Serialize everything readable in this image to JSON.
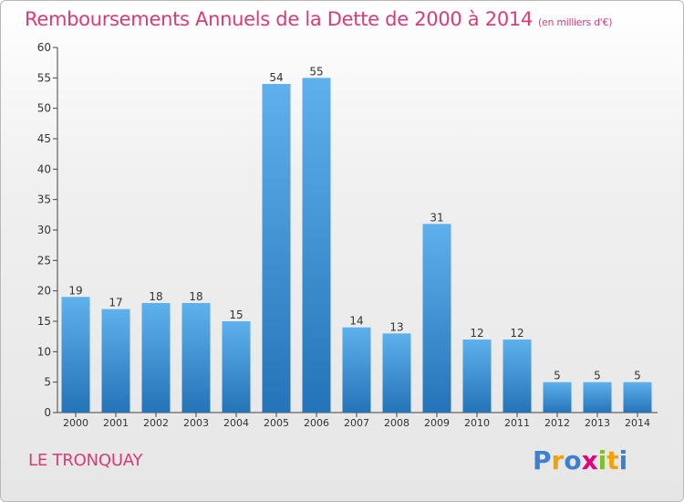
{
  "header": {
    "title": "Remboursements Annuels de la Dette de 2000 à 2014",
    "unit": "(en milliers d'€)"
  },
  "footer": {
    "commune": "LE TRONQUAY",
    "logo_text": "Proxiti"
  },
  "colors": {
    "title": "#d63c79",
    "bar_top": "#5eb1ec",
    "bar_bottom": "#2573b8",
    "logo_letters": [
      "#3d7fd0",
      "#f0a20a",
      "#3d7fd0",
      "#e4007c",
      "#7fbf2a",
      "#f0a20a",
      "#3d7fd0"
    ]
  },
  "chart_data": {
    "type": "bar",
    "title": "Remboursements Annuels de la Dette de 2000 à 2014",
    "subtitle": "(en milliers d'€)",
    "xlabel": "",
    "ylabel": "",
    "categories": [
      "2000",
      "2001",
      "2002",
      "2003",
      "2004",
      "2005",
      "2006",
      "2007",
      "2008",
      "2009",
      "2010",
      "2011",
      "2012",
      "2013",
      "2014"
    ],
    "values": [
      19,
      17,
      18,
      18,
      15,
      54,
      55,
      14,
      13,
      31,
      12,
      12,
      5,
      5,
      5
    ],
    "ylim": [
      0,
      60
    ],
    "yticks": [
      0,
      5,
      10,
      15,
      20,
      25,
      30,
      35,
      40,
      45,
      50,
      55,
      60
    ],
    "grid": false,
    "data_labels": true
  }
}
